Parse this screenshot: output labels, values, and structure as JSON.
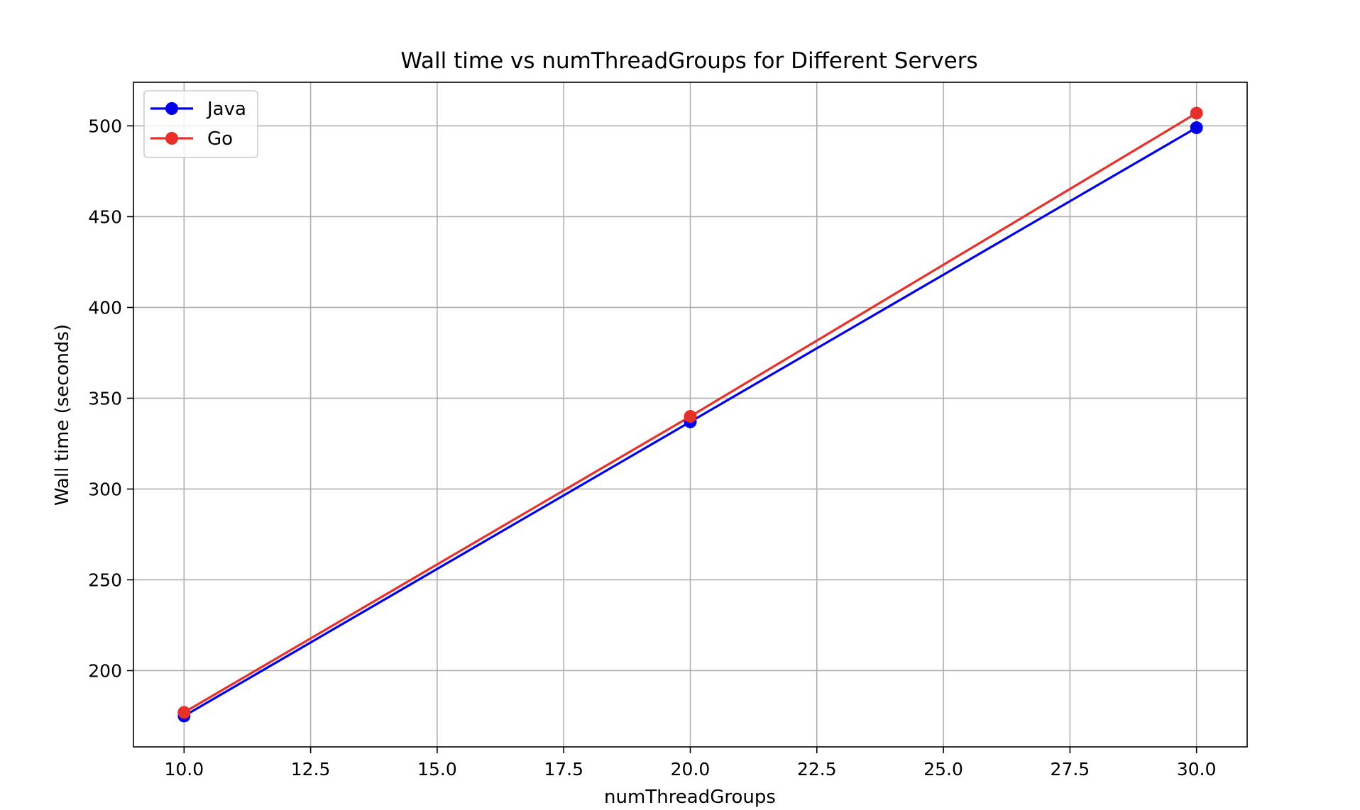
{
  "chart_data": {
    "type": "line",
    "title": "Wall time vs numThreadGroups for Different Servers",
    "xlabel": "numThreadGroups",
    "ylabel": "Wall time (seconds)",
    "xlim": [
      9.0,
      31.0
    ],
    "ylim": [
      158,
      524
    ],
    "xticks": [
      10.0,
      12.5,
      15.0,
      17.5,
      20.0,
      22.5,
      25.0,
      27.5,
      30.0
    ],
    "xtick_labels": [
      "10.0",
      "12.5",
      "15.0",
      "17.5",
      "20.0",
      "22.5",
      "25.0",
      "27.5",
      "30.0"
    ],
    "yticks": [
      200,
      250,
      300,
      350,
      400,
      450,
      500
    ],
    "ytick_labels": [
      "200",
      "250",
      "300",
      "350",
      "400",
      "450",
      "500"
    ],
    "grid": true,
    "legend_position": "top-left",
    "x": [
      10,
      20,
      30
    ],
    "series": [
      {
        "name": "Java",
        "color": "#0000ee",
        "marker": "circle",
        "values": [
          175,
          337,
          499
        ]
      },
      {
        "name": "Go",
        "color": "#e8302a",
        "marker": "circle",
        "values": [
          177,
          340,
          507
        ]
      }
    ]
  }
}
